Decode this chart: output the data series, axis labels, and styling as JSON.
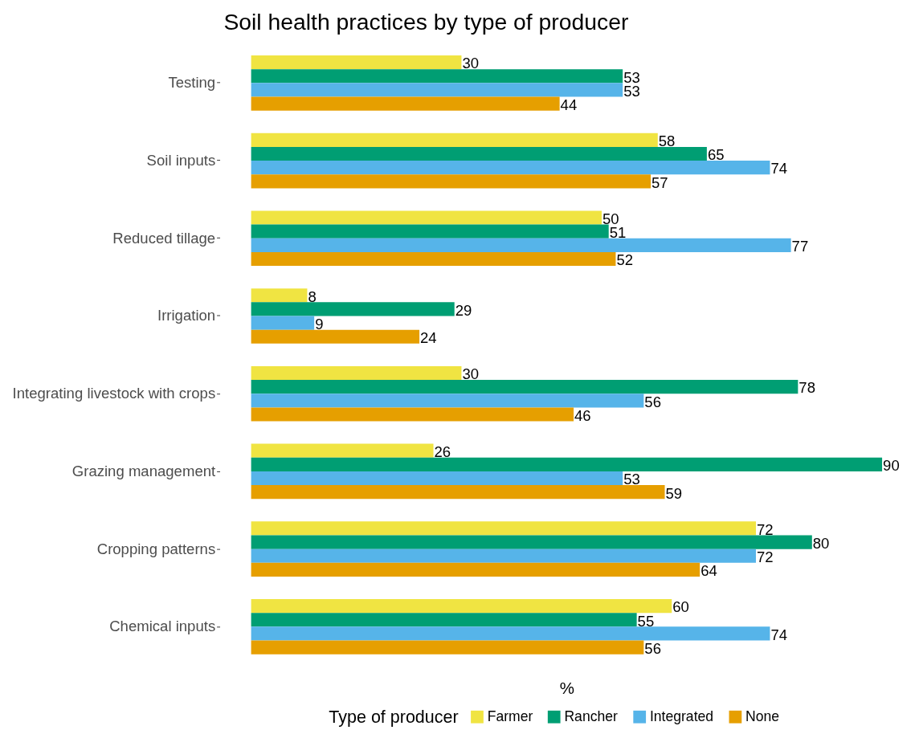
{
  "chart_data": {
    "type": "bar",
    "orientation": "horizontal",
    "title": "Soil health practices by type of producer",
    "xlabel": "%",
    "legend_title": "Type of producer",
    "categories": [
      "Testing",
      "Soil inputs",
      "Reduced tillage",
      "Irrigation",
      "Integrating livestock with crops",
      "Grazing management",
      "Cropping patterns",
      "Chemical inputs"
    ],
    "series": [
      {
        "name": "Farmer",
        "color": "#f0e442",
        "values": [
          30,
          58,
          50,
          8,
          30,
          26,
          72,
          60
        ]
      },
      {
        "name": "Rancher",
        "color": "#009e73",
        "values": [
          53,
          65,
          51,
          29,
          78,
          90,
          80,
          55
        ]
      },
      {
        "name": "Integrated",
        "color": "#56b4e9",
        "values": [
          53,
          74,
          77,
          9,
          56,
          53,
          72,
          74
        ]
      },
      {
        "name": "None",
        "color": "#e69f00",
        "values": [
          44,
          57,
          52,
          24,
          46,
          59,
          64,
          56
        ]
      }
    ],
    "data_labels": true,
    "legend": "bottom",
    "tick_labels": "y"
  }
}
